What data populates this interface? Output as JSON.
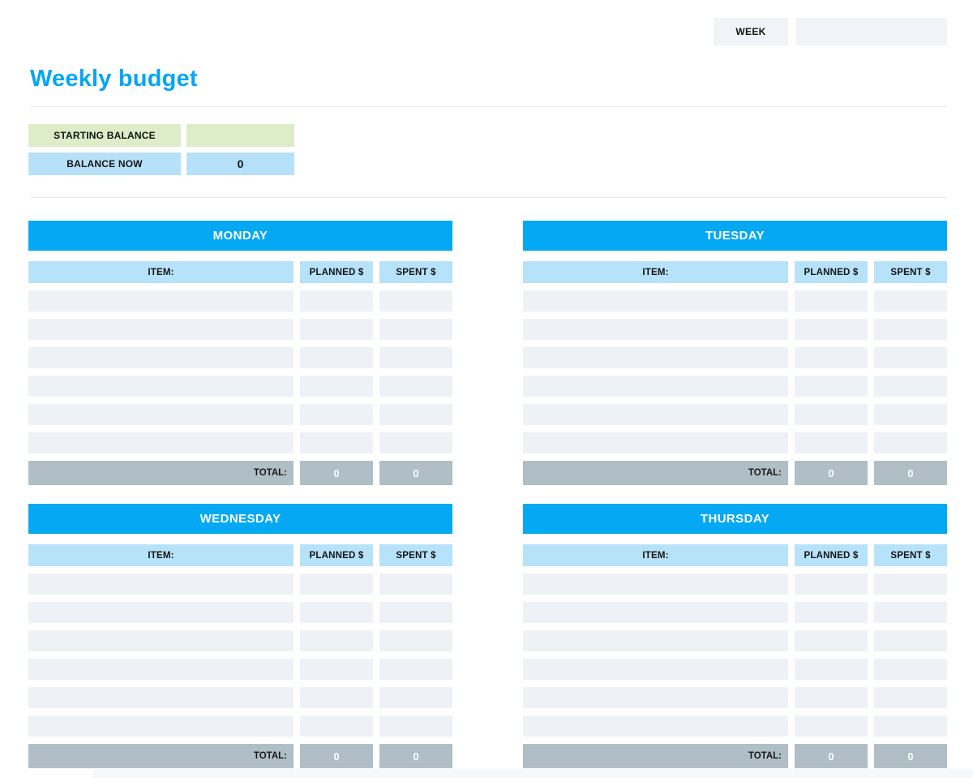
{
  "header": {
    "week_label": "WEEK",
    "week_value": ""
  },
  "title": "Weekly budget",
  "balance": {
    "starting_label": "STARTING BALANCE",
    "starting_value": "",
    "now_label": "BALANCE NOW",
    "now_value": "0"
  },
  "columns": {
    "item": "ITEM:",
    "planned": "PLANNED $",
    "spent": "SPENT $",
    "total": "TOTAL:"
  },
  "days": [
    {
      "name": "MONDAY",
      "empty_row_count": 6,
      "total_planned": "0",
      "total_spent": "0"
    },
    {
      "name": "TUESDAY",
      "empty_row_count": 6,
      "total_planned": "0",
      "total_spent": "0"
    },
    {
      "name": "WEDNESDAY",
      "empty_row_count": 6,
      "total_planned": "0",
      "total_spent": "0"
    },
    {
      "name": "THURSDAY",
      "empty_row_count": 6,
      "total_planned": "0",
      "total_spent": "0"
    }
  ],
  "colors": {
    "accent_blue": "#05a8f3",
    "title_blue": "#04a6f4",
    "light_blue_header": "#b6e2fa",
    "balance_blue": "#b6e1f9",
    "balance_green": "#dcedc8",
    "empty_row_gray": "#eef2f6",
    "total_gray": "#b0bec5",
    "field_gray": "#f0f3f7"
  }
}
